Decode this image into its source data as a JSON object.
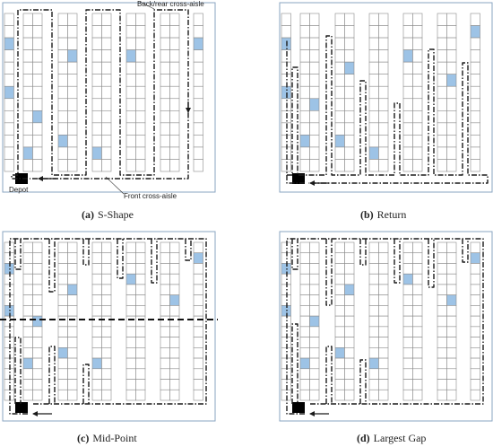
{
  "panels": [
    {
      "id": "a",
      "tag": "(a)",
      "title": "S-Shape"
    },
    {
      "id": "b",
      "tag": "(b)",
      "title": "Return"
    },
    {
      "id": "c",
      "tag": "(c)",
      "title": "Mid-Point"
    },
    {
      "id": "d",
      "tag": "(d)",
      "title": "Largest Gap"
    }
  ],
  "annotations": {
    "back_cross_aisle": "Back/rear cross-aisle",
    "front_cross_aisle": "Front cross-aisle",
    "depot": "Depot"
  },
  "colors": {
    "border": "#8aa4c2",
    "pick_location": "#9dc3e6",
    "rack_line": "#8b8b8b",
    "route": "#1a1a1a",
    "depot": "#000000"
  }
}
